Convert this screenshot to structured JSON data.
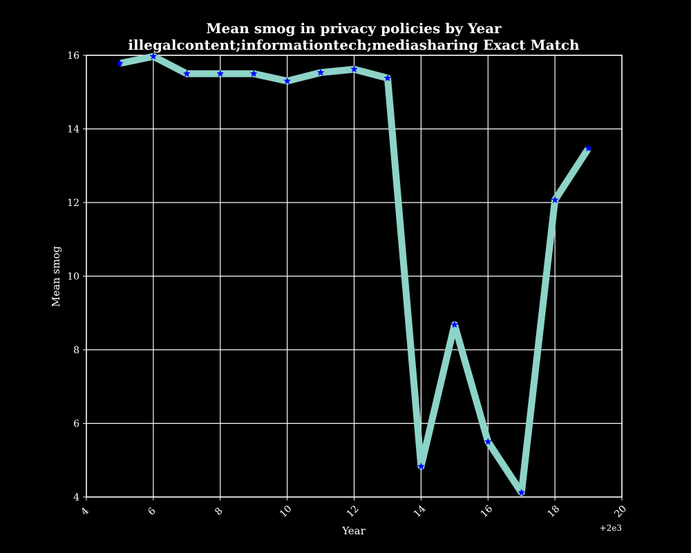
{
  "colors": {
    "background": "#000000",
    "axes": "#ffffff",
    "grid": "#ffffff",
    "line": "#8dd3c7",
    "marker": "#0000ff"
  },
  "chart_data": {
    "type": "line",
    "title_line1": "Mean smog in privacy policies by Year",
    "title_line2": "illegalcontent;informationtech;mediasharing Exact Match",
    "xlabel": "Year",
    "ylabel": "Mean smog",
    "x_offset_label": "+2e3",
    "xlim": [
      4,
      20
    ],
    "ylim": [
      4,
      16
    ],
    "x_ticks": [
      "4",
      "6",
      "8",
      "10",
      "12",
      "14",
      "16",
      "18",
      "20"
    ],
    "y_ticks": [
      "4",
      "6",
      "8",
      "10",
      "12",
      "14",
      "16"
    ],
    "grid": true,
    "marker": "star",
    "series": [
      {
        "x": [
          5,
          6,
          7,
          8,
          9,
          10,
          11,
          12,
          13,
          14,
          15,
          16,
          17,
          18,
          19
        ],
        "y": [
          15.78,
          15.97,
          15.5,
          15.5,
          15.5,
          15.3,
          15.53,
          15.62,
          15.38,
          4.83,
          8.68,
          5.5,
          4.12,
          12.07,
          13.47
        ]
      }
    ]
  }
}
